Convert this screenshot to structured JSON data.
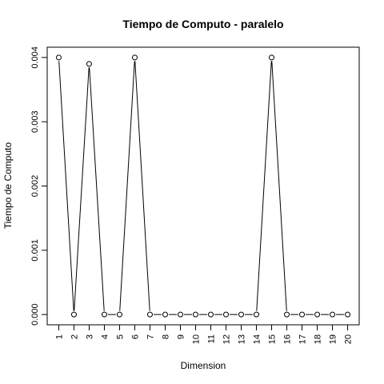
{
  "chart_data": {
    "type": "line",
    "title": "Tiempo de Computo - paralelo",
    "xlabel": "Dimension",
    "ylabel": "Tiempo de Computo",
    "x": [
      1,
      2,
      3,
      4,
      5,
      6,
      7,
      8,
      9,
      10,
      11,
      12,
      13,
      14,
      15,
      16,
      17,
      18,
      19,
      20
    ],
    "y": [
      0.004,
      0,
      0.0039,
      0,
      0,
      0.004,
      0,
      0,
      0,
      0,
      0,
      0,
      0,
      0,
      0.004,
      0,
      0,
      0,
      0,
      0
    ],
    "xticks": [
      "1",
      "2",
      "3",
      "4",
      "5",
      "6",
      "7",
      "8",
      "9",
      "10",
      "11",
      "12",
      "13",
      "14",
      "15",
      "16",
      "17",
      "18",
      "19",
      "20"
    ],
    "yticks": [
      "0.000",
      "0.001",
      "0.002",
      "0.003",
      "0.004"
    ],
    "yticks_values": [
      0,
      0.001,
      0.002,
      0.003,
      0.004
    ],
    "xlim": [
      0.24,
      20.76
    ],
    "ylim": [
      -0.00016,
      0.00416
    ],
    "marker": "open-circle",
    "line_color": "#000000",
    "grid": false
  }
}
